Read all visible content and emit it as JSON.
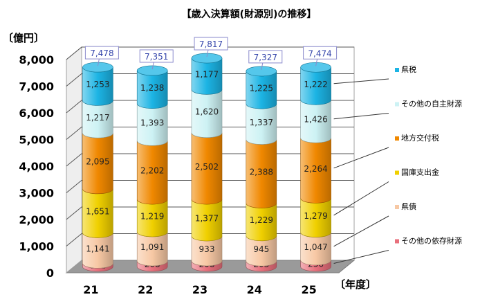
{
  "title": "【歳入決算額(財源別)の推移】",
  "y_unit": "〔億円〕",
  "x_unit": "〔年度〕",
  "colors": {
    "その他の依存財源": "#e8707c",
    "県債": "#f7c8a4",
    "国庫支出金": "#f0d000",
    "地方交付税": "#f08800",
    "その他の自主財源": "#cdf2f4",
    "県税": "#1cb4e4"
  },
  "chart_data": {
    "type": "bar",
    "stacked": true,
    "style": "3d-cylinder",
    "categories": [
      "21",
      "22",
      "23",
      "24",
      "25"
    ],
    "series": [
      {
        "name": "その他の依存財源",
        "values": [
          121,
          208,
          208,
          203,
          236
        ]
      },
      {
        "name": "県債",
        "values": [
          1141,
          1091,
          933,
          945,
          1047
        ]
      },
      {
        "name": "国庫支出金",
        "values": [
          1651,
          1219,
          1377,
          1229,
          1279
        ]
      },
      {
        "name": "地方交付税",
        "values": [
          2095,
          2202,
          2502,
          2388,
          2264
        ]
      },
      {
        "name": "その他の自主財源",
        "values": [
          1217,
          1393,
          1620,
          1337,
          1426
        ]
      },
      {
        "name": "県税",
        "values": [
          1253,
          1238,
          1177,
          1225,
          1222
        ]
      }
    ],
    "totals": [
      7478,
      7351,
      7817,
      7327,
      7474
    ],
    "total_labels": [
      "7,478",
      "7,351",
      "7,817",
      "7,327",
      "7,474"
    ],
    "yticks": [
      "0",
      "1,000",
      "2,000",
      "3,000",
      "4,000",
      "5,000",
      "6,000",
      "7,000",
      "8,000"
    ],
    "ylim": [
      0,
      8000
    ],
    "grid": true,
    "legend_position": "right"
  }
}
